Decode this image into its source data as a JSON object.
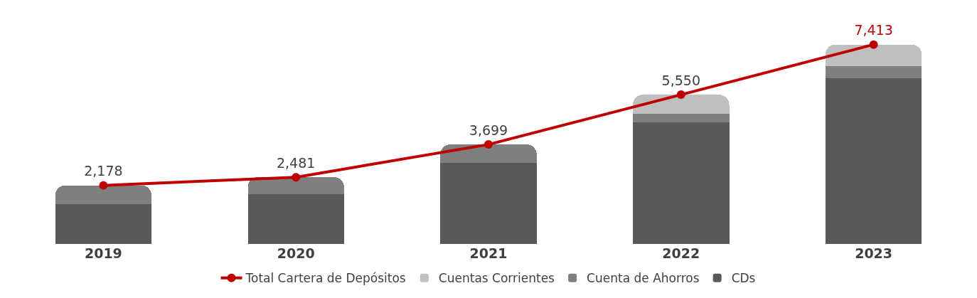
{
  "chart_data": {
    "type": "bar",
    "stacked": true,
    "categories": [
      "2019",
      "2020",
      "2021",
      "2022",
      "2023"
    ],
    "series": [
      {
        "name": "CDs",
        "color": "#595959",
        "values": [
          1490,
          1860,
          3010,
          4520,
          6170
        ]
      },
      {
        "name": "Cuenta de Ahorros",
        "color": "#7f7f7f",
        "values": [
          688,
          621,
          689,
          310,
          450
        ]
      },
      {
        "name": "Cuentas Corrientes",
        "color": "#bfbfbf",
        "values": [
          0,
          0,
          0,
          720,
          793
        ]
      },
      {
        "name": "Total Cartera de Depósitos",
        "type": "line",
        "color": "#c00000",
        "marker": "circle",
        "line_style": "solid",
        "values": [
          2178,
          2481,
          3699,
          5550,
          7413
        ],
        "value_labels": [
          "2,178",
          "2,481",
          "3,699",
          "5,550",
          "7,413"
        ]
      }
    ],
    "legend": "bottom",
    "grid": false,
    "tick_labels": "x"
  }
}
